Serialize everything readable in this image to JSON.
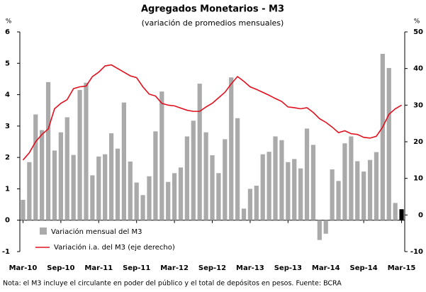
{
  "chart_data": {
    "type": "bar_line",
    "title": "Agregados Monetarios - M3",
    "subtitle": "(variación de promedios mensuales)",
    "y_label": "%",
    "y2_label": "%",
    "note": "Nota: el M3 incluye el circulante en poder del público y el total de depósitos en pesos. Fuente: BCRA",
    "categories": [
      "Mar-10",
      null,
      null,
      null,
      null,
      null,
      "Sep-10",
      null,
      null,
      null,
      null,
      null,
      "Mar-11",
      null,
      null,
      null,
      null,
      null,
      "Sep-11",
      null,
      null,
      null,
      null,
      null,
      "Mar-12",
      null,
      null,
      null,
      null,
      null,
      "Sep-12",
      null,
      null,
      null,
      null,
      null,
      "Mar-13",
      null,
      null,
      null,
      null,
      null,
      "Sep-13",
      null,
      null,
      null,
      null,
      null,
      "Mar-14",
      null,
      null,
      null,
      null,
      null,
      "Sep-14",
      null,
      null,
      null,
      null,
      null,
      "Mar-15"
    ],
    "series": [
      {
        "name": "Variación mensual del M3",
        "kind": "bar",
        "color": "#aaaaaa",
        "colors": [
          "#aaaaaa",
          "#aaaaaa",
          "#aaaaaa",
          "#aaaaaa",
          "#aaaaaa",
          "#aaaaaa",
          "#aaaaaa",
          "#aaaaaa",
          "#aaaaaa",
          "#aaaaaa",
          "#aaaaaa",
          "#aaaaaa",
          "#aaaaaa",
          "#aaaaaa",
          "#aaaaaa",
          "#aaaaaa",
          "#aaaaaa",
          "#aaaaaa",
          "#aaaaaa",
          "#aaaaaa",
          "#aaaaaa",
          "#aaaaaa",
          "#aaaaaa",
          "#aaaaaa",
          "#aaaaaa",
          "#aaaaaa",
          "#aaaaaa",
          "#aaaaaa",
          "#aaaaaa",
          "#aaaaaa",
          "#aaaaaa",
          "#aaaaaa",
          "#aaaaaa",
          "#aaaaaa",
          "#aaaaaa",
          "#aaaaaa",
          "#aaaaaa",
          "#aaaaaa",
          "#aaaaaa",
          "#aaaaaa",
          "#aaaaaa",
          "#aaaaaa",
          "#aaaaaa",
          "#aaaaaa",
          "#aaaaaa",
          "#aaaaaa",
          "#aaaaaa",
          "#aaaaaa",
          "#aaaaaa",
          "#aaaaaa",
          "#aaaaaa",
          "#aaaaaa",
          "#aaaaaa",
          "#aaaaaa",
          "#aaaaaa",
          "#aaaaaa",
          "#aaaaaa",
          "#aaaaaa",
          "#aaaaaa",
          "#aaaaaa",
          "#000000"
        ],
        "values": [
          0.65,
          1.85,
          3.37,
          2.87,
          4.4,
          2.22,
          2.8,
          3.28,
          2.08,
          4.15,
          4.38,
          1.43,
          2.03,
          2.1,
          2.77,
          2.28,
          3.75,
          1.87,
          1.2,
          0.8,
          1.4,
          2.83,
          4.1,
          1.22,
          1.5,
          1.68,
          2.67,
          3.17,
          4.35,
          2.8,
          2.07,
          1.5,
          2.58,
          4.55,
          3.25,
          0.37,
          1.0,
          1.1,
          2.1,
          2.18,
          2.67,
          2.55,
          1.85,
          1.95,
          1.65,
          2.92,
          2.4,
          -0.63,
          -0.43,
          1.62,
          1.25,
          2.45,
          2.67,
          1.88,
          1.55,
          1.92,
          2.17,
          5.3,
          4.85,
          0.55,
          0.35
        ]
      },
      {
        "name": "Variación i.a. del M3 (eje derecho)",
        "kind": "line",
        "axis": "y2",
        "color": "#e0101e",
        "values": [
          15,
          17,
          20,
          22,
          23.5,
          29,
          30.5,
          31.5,
          34.5,
          35,
          35.2,
          37.8,
          39,
          40.7,
          41,
          40,
          39,
          38,
          37.5,
          35,
          33,
          32.5,
          30.5,
          30,
          29.8,
          29.2,
          28.6,
          28.3,
          28.3,
          29.5,
          30.5,
          32,
          33.5,
          35.8,
          37.8,
          36.5,
          35,
          34.3,
          33.5,
          32.7,
          31.8,
          31,
          29.5,
          29.3,
          29,
          29.3,
          28,
          26.3,
          25.3,
          24,
          22.5,
          23,
          22.2,
          22,
          21.2,
          21,
          21.5,
          24,
          27.5,
          29,
          30
        ]
      }
    ],
    "ylim": [
      -1,
      6
    ],
    "yticks": [
      -1,
      0,
      1,
      2,
      3,
      4,
      5,
      6
    ],
    "y2lim": [
      -10,
      50
    ],
    "y2ticks": [
      -10,
      0,
      10,
      20,
      30,
      40,
      50
    ]
  }
}
